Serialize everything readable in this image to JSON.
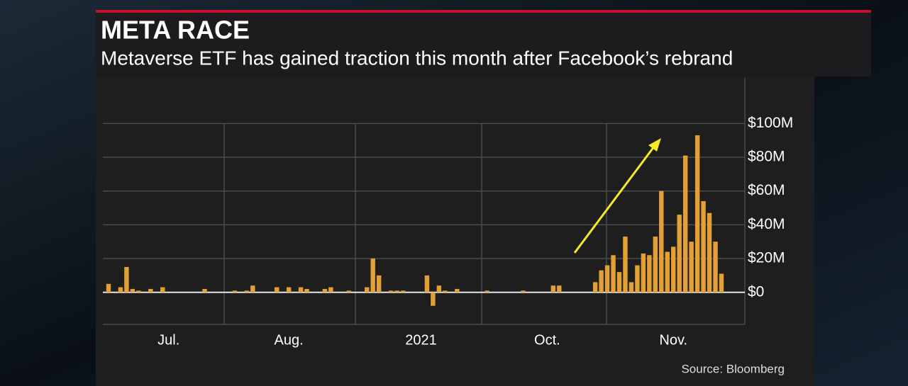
{
  "chart_data": {
    "type": "bar",
    "title": "META RACE",
    "subtitle": "Metaverse ETF has gained traction this month after Facebook’s rebrand",
    "source": "Source: Bloomberg",
    "color": "#e3a035",
    "grid": true,
    "ylim": [
      -19,
      127
    ],
    "yticks": [
      {
        "value": 0,
        "label": "$0"
      },
      {
        "value": 20,
        "label": "$20M"
      },
      {
        "value": 40,
        "label": "$40M"
      },
      {
        "value": 60,
        "label": "$60M"
      },
      {
        "value": 80,
        "label": "$80M"
      },
      {
        "value": 100,
        "label": "$100M"
      }
    ],
    "categories": [
      null,
      null,
      null,
      null,
      null,
      null,
      null,
      null,
      null,
      null,
      "Jul.",
      null,
      null,
      null,
      null,
      null,
      null,
      null,
      null,
      null,
      null,
      null,
      null,
      null,
      null,
      null,
      null,
      null,
      null,
      null,
      "Aug.",
      null,
      null,
      null,
      null,
      null,
      null,
      null,
      null,
      null,
      null,
      null,
      null,
      null,
      null,
      null,
      null,
      null,
      null,
      null,
      null,
      null,
      "2021",
      null,
      null,
      null,
      null,
      null,
      null,
      null,
      null,
      null,
      null,
      null,
      null,
      null,
      null,
      null,
      null,
      null,
      null,
      null,
      null,
      "Oct.",
      null,
      null,
      null,
      null,
      null,
      null,
      null,
      null,
      null,
      null,
      null,
      null,
      null,
      null,
      null,
      null,
      null,
      null,
      null,
      null,
      "Nov.",
      null,
      null,
      null,
      null,
      null,
      null,
      null,
      null
    ],
    "values": [
      5,
      0,
      3,
      15,
      2,
      1,
      0,
      2,
      0,
      3,
      0,
      0,
      0,
      0,
      0,
      0,
      2,
      0,
      0,
      0,
      0,
      1,
      0,
      1,
      4,
      0,
      0,
      0,
      3,
      0,
      3,
      0,
      3,
      2,
      0,
      0,
      2,
      3,
      0,
      0,
      1,
      0,
      0,
      3,
      20,
      10,
      0,
      1,
      1,
      1,
      0,
      0,
      0,
      10,
      -8,
      4,
      1,
      0,
      2,
      0,
      0,
      0,
      0,
      1,
      0,
      0,
      0,
      0,
      0,
      1,
      0,
      0,
      0,
      0,
      4,
      4,
      0,
      0,
      0,
      0,
      0,
      6,
      13,
      16,
      22,
      12,
      33,
      6,
      16,
      23,
      22,
      33,
      60,
      24,
      27,
      46,
      81,
      30,
      93,
      54,
      47,
      30,
      11
    ]
  }
}
